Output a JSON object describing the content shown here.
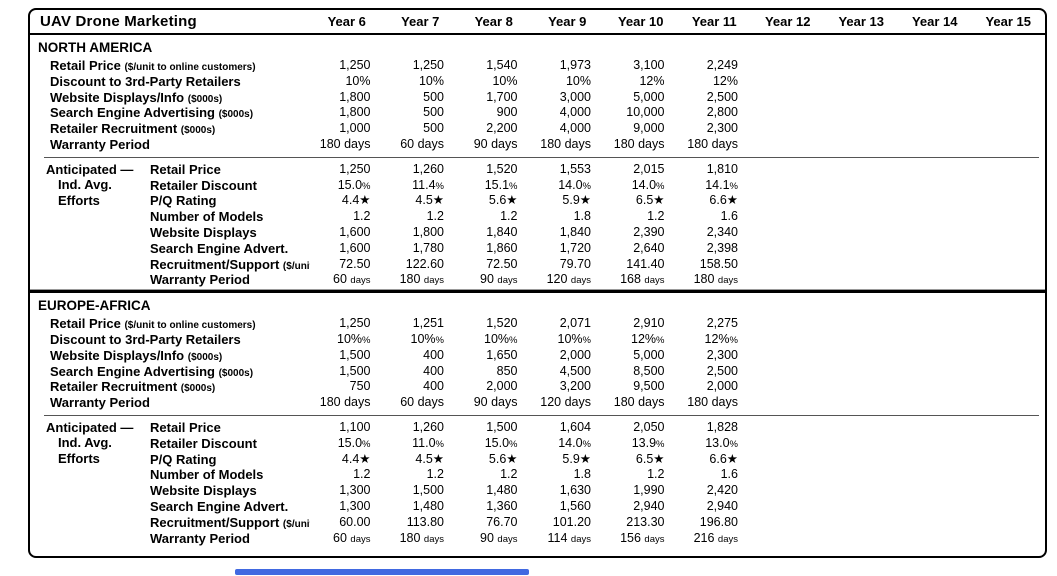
{
  "header": {
    "title": "UAV Drone Marketing",
    "years": [
      "Year 6",
      "Year 7",
      "Year 8",
      "Year 9",
      "Year 10",
      "Year 11",
      "Year 12",
      "Year 13",
      "Year 14",
      "Year 15"
    ]
  },
  "sections": [
    {
      "name": "NORTH AMERICA",
      "decision_rows": [
        {
          "label": "Retail Price",
          "unit": "($/unit to online customers)",
          "small_suffix": false,
          "values": [
            "1,250",
            "1,250",
            "1,540",
            "1,973",
            "3,100",
            "2,249",
            "",
            "",
            "",
            ""
          ]
        },
        {
          "label": "Discount to 3rd-Party Retailers",
          "unit": "",
          "small_suffix": false,
          "values": [
            "10%",
            "10%",
            "10%",
            "10%",
            "12%",
            "12%",
            "",
            "",
            "",
            ""
          ]
        },
        {
          "label": "Website Displays/Info",
          "unit": "($000s)",
          "small_suffix": false,
          "values": [
            "1,800",
            "500",
            "1,700",
            "3,000",
            "5,000",
            "2,500",
            "",
            "",
            "",
            ""
          ]
        },
        {
          "label": "Search Engine Advertising",
          "unit": "($000s)",
          "small_suffix": false,
          "values": [
            "1,800",
            "500",
            "900",
            "4,000",
            "10,000",
            "2,800",
            "",
            "",
            "",
            ""
          ]
        },
        {
          "label": "Retailer Recruitment",
          "unit": "($000s)",
          "small_suffix": false,
          "values": [
            "1,000",
            "500",
            "2,200",
            "4,000",
            "9,000",
            "2,300",
            "",
            "",
            "",
            ""
          ]
        },
        {
          "label": "Warranty Period",
          "unit": "",
          "small_suffix": false,
          "values": [
            "180 days",
            "60 days",
            "90 days",
            "180 days",
            "180 days",
            "180 days",
            "",
            "",
            "",
            ""
          ]
        }
      ],
      "anticipated": {
        "group_label_lines": [
          "Anticipated —",
          "Ind. Avg.",
          "Efforts"
        ],
        "rows": [
          {
            "label": "Retail Price",
            "unit": "",
            "small_suffix": false,
            "values": [
              "1,250",
              "1,260",
              "1,520",
              "1,553",
              "2,015",
              "1,810",
              "",
              "",
              "",
              ""
            ]
          },
          {
            "label": "Retailer Discount",
            "unit": "",
            "small_suffix": true,
            "values": [
              "15.0%",
              "11.4%",
              "15.1%",
              "14.0%",
              "14.0%",
              "14.1%",
              "",
              "",
              "",
              ""
            ]
          },
          {
            "label": "P/Q Rating",
            "unit": "",
            "small_suffix": false,
            "values": [
              "4.4★",
              "4.5★",
              "5.6★",
              "5.9★",
              "6.5★",
              "6.6★",
              "",
              "",
              "",
              ""
            ]
          },
          {
            "label": "Number of Models",
            "unit": "",
            "small_suffix": false,
            "values": [
              "1.2",
              "1.2",
              "1.2",
              "1.8",
              "1.2",
              "1.6",
              "",
              "",
              "",
              ""
            ]
          },
          {
            "label": "Website Displays",
            "unit": "",
            "small_suffix": false,
            "values": [
              "1,600",
              "1,800",
              "1,840",
              "1,840",
              "2,390",
              "2,340",
              "",
              "",
              "",
              ""
            ]
          },
          {
            "label": "Search Engine Advert.",
            "unit": "",
            "small_suffix": false,
            "values": [
              "1,600",
              "1,780",
              "1,860",
              "1,720",
              "2,640",
              "2,398",
              "",
              "",
              "",
              ""
            ]
          },
          {
            "label": "Recruitment/Support",
            "unit": "($/unit)",
            "small_suffix": false,
            "values": [
              "72.50",
              "122.60",
              "72.50",
              "79.70",
              "141.40",
              "158.50",
              "",
              "",
              "",
              ""
            ]
          },
          {
            "label": "Warranty Period",
            "unit": "",
            "small_suffix": true,
            "values": [
              "60 days",
              "180 days",
              "90 days",
              "120 days",
              "168 days",
              "180 days",
              "",
              "",
              "",
              ""
            ]
          }
        ]
      }
    },
    {
      "name": "EUROPE-AFRICA",
      "decision_rows": [
        {
          "label": "Retail Price",
          "unit": "($/unit to online customers)",
          "small_suffix": false,
          "values": [
            "1,250",
            "1,251",
            "1,520",
            "2,071",
            "2,910",
            "2,275",
            "",
            "",
            "",
            ""
          ]
        },
        {
          "label": "Discount to 3rd-Party Retailers",
          "unit": "",
          "small_suffix": true,
          "values": [
            "10%%",
            "10%%",
            "10%%",
            "10%%",
            "12%%",
            "12%%",
            "",
            "",
            "",
            ""
          ]
        },
        {
          "label": "Website Displays/Info",
          "unit": "($000s)",
          "small_suffix": false,
          "values": [
            "1,500",
            "400",
            "1,650",
            "2,000",
            "5,000",
            "2,300",
            "",
            "",
            "",
            ""
          ]
        },
        {
          "label": "Search Engine Advertising",
          "unit": "($000s)",
          "small_suffix": false,
          "values": [
            "1,500",
            "400",
            "850",
            "4,500",
            "8,500",
            "2,500",
            "",
            "",
            "",
            ""
          ]
        },
        {
          "label": "Retailer Recruitment",
          "unit": "($000s)",
          "small_suffix": false,
          "values": [
            "750",
            "400",
            "2,000",
            "3,200",
            "9,500",
            "2,000",
            "",
            "",
            "",
            ""
          ]
        },
        {
          "label": "Warranty Period",
          "unit": "",
          "small_suffix": false,
          "values": [
            "180 days",
            "60 days",
            "90 days",
            "120 days",
            "180 days",
            "180 days",
            "",
            "",
            "",
            ""
          ]
        }
      ],
      "anticipated": {
        "group_label_lines": [
          "Anticipated —",
          "Ind. Avg.",
          "Efforts"
        ],
        "rows": [
          {
            "label": "Retail Price",
            "unit": "",
            "small_suffix": false,
            "values": [
              "1,100",
              "1,260",
              "1,500",
              "1,604",
              "2,050",
              "1,828",
              "",
              "",
              "",
              ""
            ]
          },
          {
            "label": "Retailer Discount",
            "unit": "",
            "small_suffix": true,
            "values": [
              "15.0%",
              "11.0%",
              "15.0%",
              "14.0%",
              "13.9%",
              "13.0%",
              "",
              "",
              "",
              ""
            ]
          },
          {
            "label": "P/Q Rating",
            "unit": "",
            "small_suffix": false,
            "values": [
              "4.4★",
              "4.5★",
              "5.6★",
              "5.9★",
              "6.5★",
              "6.6★",
              "",
              "",
              "",
              ""
            ]
          },
          {
            "label": "Number of Models",
            "unit": "",
            "small_suffix": false,
            "values": [
              "1.2",
              "1.2",
              "1.2",
              "1.8",
              "1.2",
              "1.6",
              "",
              "",
              "",
              ""
            ]
          },
          {
            "label": "Website Displays",
            "unit": "",
            "small_suffix": false,
            "values": [
              "1,300",
              "1,500",
              "1,480",
              "1,630",
              "1,990",
              "2,420",
              "",
              "",
              "",
              ""
            ]
          },
          {
            "label": "Search Engine Advert.",
            "unit": "",
            "small_suffix": false,
            "values": [
              "1,300",
              "1,480",
              "1,360",
              "1,560",
              "2,940",
              "2,940",
              "",
              "",
              "",
              ""
            ]
          },
          {
            "label": "Recruitment/Support",
            "unit": "($/unit)",
            "small_suffix": false,
            "values": [
              "60.00",
              "113.80",
              "76.70",
              "101.20",
              "213.30",
              "196.80",
              "",
              "",
              "",
              ""
            ]
          },
          {
            "label": "Warranty Period",
            "unit": "",
            "small_suffix": true,
            "values": [
              "60 days",
              "180 days",
              "90 days",
              "114 days",
              "156 days",
              "216 days",
              "",
              "",
              "",
              ""
            ]
          }
        ]
      }
    }
  ],
  "scrollbar": {
    "thumb_color": "#4169e1"
  }
}
